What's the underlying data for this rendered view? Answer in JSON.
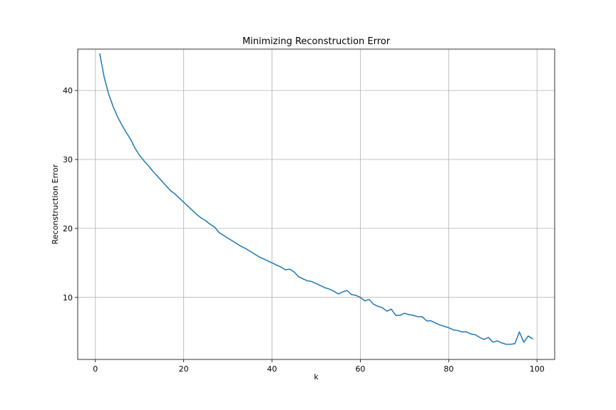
{
  "chart_data": {
    "type": "line",
    "title": "Minimizing Reconstruction Error",
    "xlabel": "k",
    "ylabel": "Reconstruction Error",
    "xlim": [
      -4,
      104
    ],
    "ylim": [
      1,
      46
    ],
    "x_ticks": [
      0,
      20,
      40,
      60,
      80,
      100
    ],
    "y_ticks": [
      10,
      20,
      30,
      40
    ],
    "grid": true,
    "legend": "none",
    "series": [
      {
        "color": "#1f77b4",
        "x": [
          1,
          2,
          3,
          4,
          5,
          6,
          7,
          8,
          9,
          10,
          11,
          12,
          13,
          14,
          15,
          16,
          17,
          18,
          19,
          20,
          21,
          22,
          23,
          24,
          25,
          26,
          27,
          28,
          29,
          30,
          31,
          32,
          33,
          34,
          35,
          36,
          37,
          38,
          39,
          40,
          41,
          42,
          43,
          44,
          45,
          46,
          47,
          48,
          49,
          50,
          51,
          52,
          53,
          54,
          55,
          56,
          57,
          58,
          59,
          60,
          61,
          62,
          63,
          64,
          65,
          66,
          67,
          68,
          69,
          70,
          71,
          72,
          73,
          74,
          75,
          76,
          77,
          78,
          79,
          80,
          81,
          82,
          83,
          84,
          85,
          86,
          87,
          88,
          89,
          90,
          91,
          92,
          93,
          94,
          95,
          96,
          97,
          98,
          99
        ],
        "y": [
          45.3,
          41.9,
          39.5,
          37.7,
          36.2,
          35.0,
          33.9,
          32.9,
          31.6,
          30.6,
          29.8,
          29.1,
          28.3,
          27.6,
          26.9,
          26.2,
          25.5,
          25.0,
          24.4,
          23.8,
          23.2,
          22.6,
          22.0,
          21.5,
          21.1,
          20.6,
          20.2,
          19.4,
          19.0,
          18.6,
          18.2,
          17.8,
          17.4,
          17.1,
          16.7,
          16.3,
          15.9,
          15.6,
          15.3,
          15.0,
          14.7,
          14.4,
          14.0,
          14.1,
          13.7,
          13.0,
          12.7,
          12.4,
          12.3,
          12.0,
          11.7,
          11.4,
          11.2,
          10.9,
          10.5,
          10.8,
          11.0,
          10.4,
          10.3,
          10.0,
          9.5,
          9.7,
          9.0,
          8.7,
          8.5,
          8.0,
          8.3,
          7.4,
          7.4,
          7.7,
          7.5,
          7.4,
          7.2,
          7.2,
          6.6,
          6.6,
          6.3,
          6.0,
          5.8,
          5.6,
          5.3,
          5.2,
          5.0,
          5.0,
          4.7,
          4.6,
          4.2,
          3.9,
          4.2,
          3.5,
          3.7,
          3.4,
          3.2,
          3.2,
          3.3,
          5.0,
          3.5,
          4.4,
          4.0
        ]
      }
    ]
  }
}
